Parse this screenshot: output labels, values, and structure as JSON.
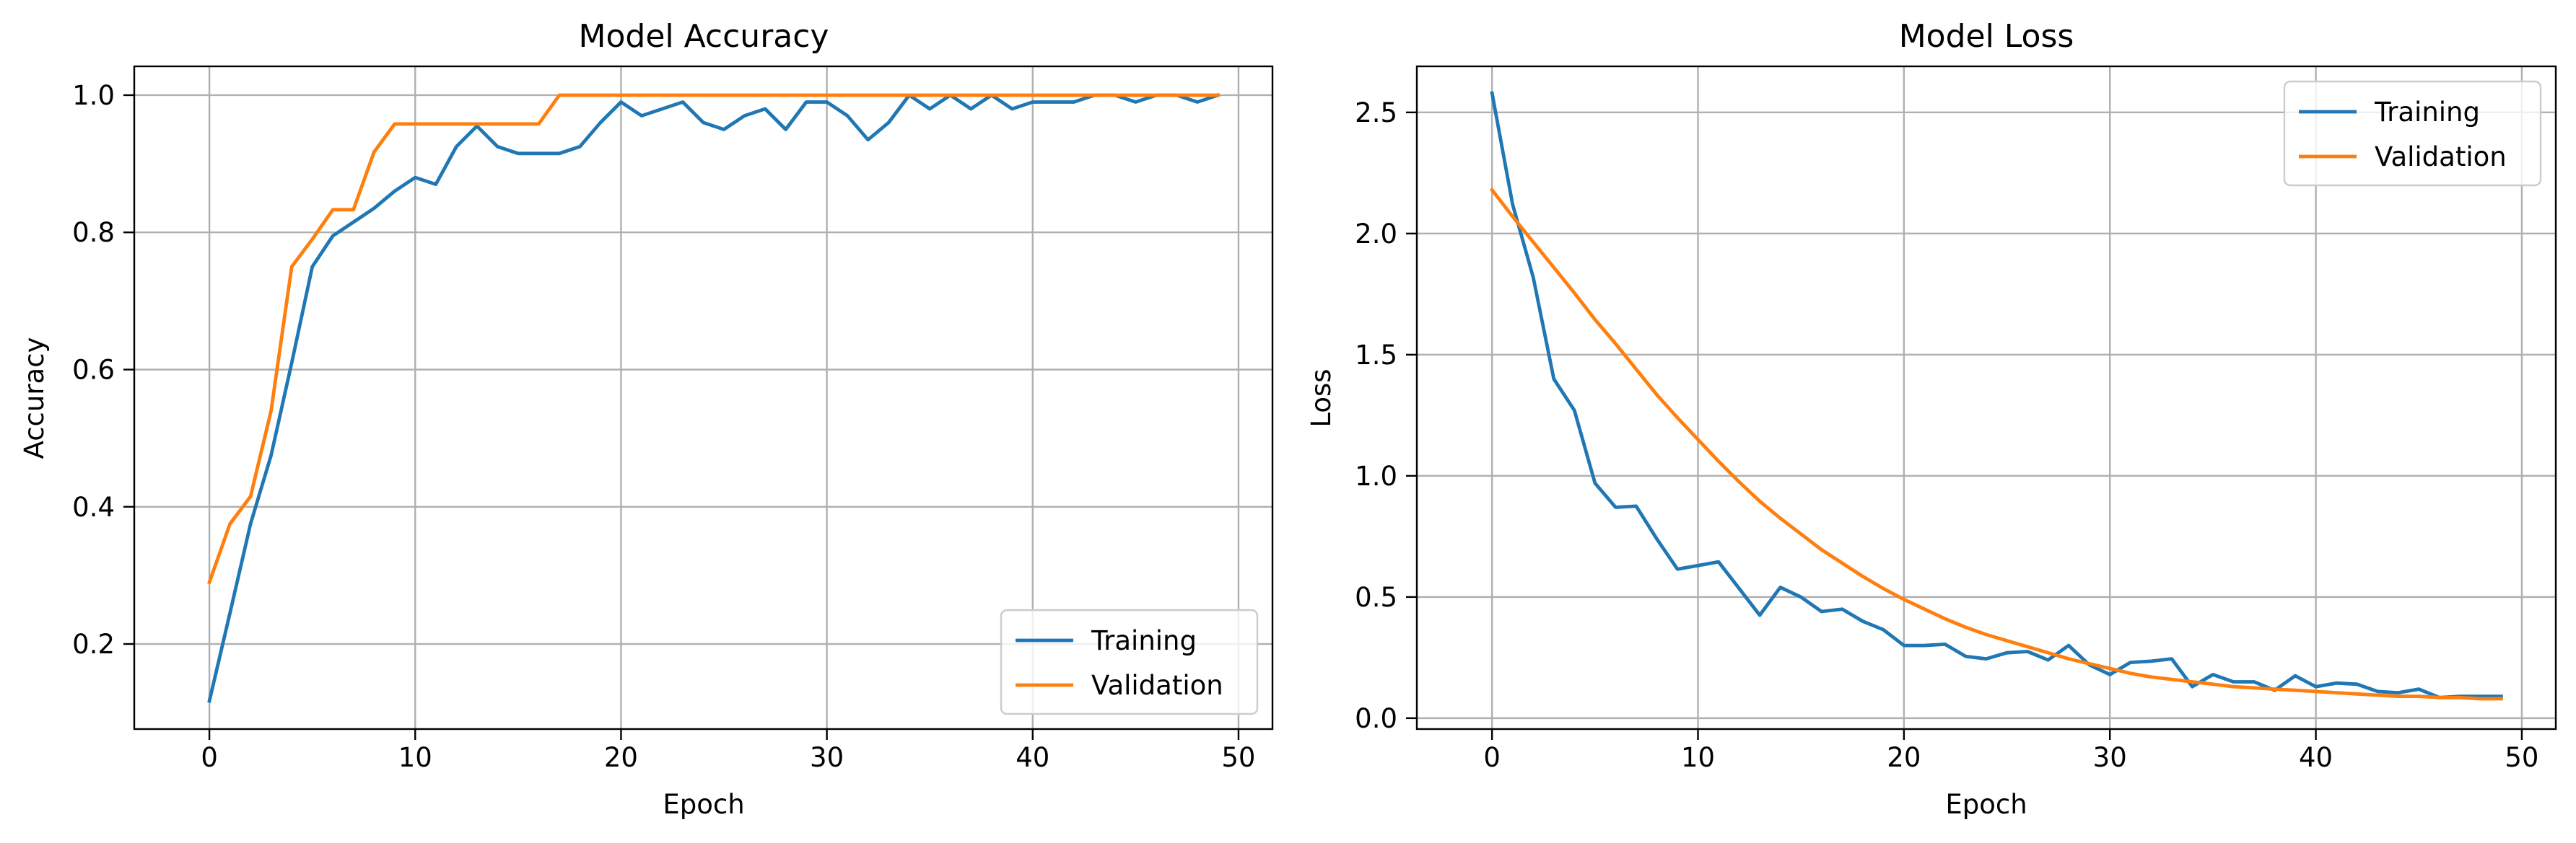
{
  "chart_data": [
    {
      "type": "line",
      "title": "Model Accuracy",
      "xlabel": "Epoch",
      "ylabel": "Accuracy",
      "xlim": [
        -3.65,
        51.65
      ],
      "ylim": [
        0.076,
        1.042
      ],
      "xticks": [
        0,
        10,
        20,
        30,
        40,
        50
      ],
      "yticks": [
        0.2,
        0.4,
        0.6,
        0.8,
        1.0
      ],
      "ytick_decimals": 1,
      "grid": true,
      "legend_position": "lower right",
      "x": [
        0,
        1,
        2,
        3,
        4,
        5,
        6,
        7,
        8,
        9,
        10,
        11,
        12,
        13,
        14,
        15,
        16,
        17,
        18,
        19,
        20,
        21,
        22,
        23,
        24,
        25,
        26,
        27,
        28,
        29,
        30,
        31,
        32,
        33,
        34,
        35,
        36,
        37,
        38,
        39,
        40,
        41,
        42,
        43,
        44,
        45,
        46,
        47,
        48,
        49
      ],
      "series": [
        {
          "name": "Training",
          "color": "#1f77b4",
          "values": [
            0.117,
            0.245,
            0.375,
            0.475,
            0.61,
            0.75,
            0.795,
            0.815,
            0.835,
            0.86,
            0.88,
            0.87,
            0.925,
            0.955,
            0.925,
            0.915,
            0.915,
            0.915,
            0.925,
            0.96,
            0.99,
            0.97,
            0.98,
            0.99,
            0.96,
            0.95,
            0.97,
            0.98,
            0.95,
            0.99,
            0.99,
            0.97,
            0.935,
            0.96,
            1.0,
            0.98,
            1.0,
            0.98,
            1.0,
            0.98,
            0.99,
            0.99,
            0.99,
            1.0,
            1.0,
            0.99,
            1.0,
            1.0,
            0.99,
            1.0
          ]
        },
        {
          "name": "Validation",
          "color": "#ff7f0e",
          "values": [
            0.29,
            0.375,
            0.415,
            0.54,
            0.75,
            0.79,
            0.833,
            0.833,
            0.917,
            0.958,
            0.958,
            0.958,
            0.958,
            0.958,
            0.958,
            0.958,
            0.958,
            1.0,
            1.0,
            1.0,
            1.0,
            1.0,
            1.0,
            1.0,
            1.0,
            1.0,
            1.0,
            1.0,
            1.0,
            1.0,
            1.0,
            1.0,
            1.0,
            1.0,
            1.0,
            1.0,
            1.0,
            1.0,
            1.0,
            1.0,
            1.0,
            1.0,
            1.0,
            1.0,
            1.0,
            1.0,
            1.0,
            1.0,
            1.0,
            1.0
          ]
        }
      ]
    },
    {
      "type": "line",
      "title": "Model Loss",
      "xlabel": "Epoch",
      "ylabel": "Loss",
      "xlim": [
        -3.65,
        51.65
      ],
      "ylim": [
        -0.045,
        2.69
      ],
      "xticks": [
        0,
        10,
        20,
        30,
        40,
        50
      ],
      "yticks": [
        0.0,
        0.5,
        1.0,
        1.5,
        2.0,
        2.5
      ],
      "ytick_decimals": 1,
      "grid": true,
      "legend_position": "upper right",
      "x": [
        0,
        1,
        2,
        3,
        4,
        5,
        6,
        7,
        8,
        9,
        10,
        11,
        12,
        13,
        14,
        15,
        16,
        17,
        18,
        19,
        20,
        21,
        22,
        23,
        24,
        25,
        26,
        27,
        28,
        29,
        30,
        31,
        32,
        33,
        34,
        35,
        36,
        37,
        38,
        39,
        40,
        41,
        42,
        43,
        44,
        45,
        46,
        47,
        48,
        49
      ],
      "series": [
        {
          "name": "Training",
          "color": "#1f77b4",
          "values": [
            2.58,
            2.12,
            1.82,
            1.4,
            1.27,
            0.97,
            0.87,
            0.875,
            0.74,
            0.615,
            0.63,
            0.645,
            0.535,
            0.425,
            0.54,
            0.5,
            0.44,
            0.45,
            0.4,
            0.365,
            0.3,
            0.3,
            0.305,
            0.255,
            0.245,
            0.27,
            0.275,
            0.24,
            0.3,
            0.22,
            0.18,
            0.23,
            0.235,
            0.245,
            0.13,
            0.18,
            0.15,
            0.15,
            0.115,
            0.175,
            0.13,
            0.145,
            0.14,
            0.11,
            0.105,
            0.12,
            0.085,
            0.09,
            0.09,
            0.09
          ]
        },
        {
          "name": "Validation",
          "color": "#ff7f0e",
          "values": [
            2.18,
            2.07,
            1.965,
            1.86,
            1.755,
            1.645,
            1.545,
            1.44,
            1.335,
            1.24,
            1.15,
            1.06,
            0.975,
            0.895,
            0.825,
            0.76,
            0.695,
            0.64,
            0.585,
            0.535,
            0.49,
            0.45,
            0.41,
            0.375,
            0.345,
            0.32,
            0.295,
            0.27,
            0.245,
            0.225,
            0.205,
            0.185,
            0.17,
            0.16,
            0.15,
            0.14,
            0.13,
            0.125,
            0.12,
            0.115,
            0.11,
            0.105,
            0.1,
            0.095,
            0.09,
            0.09,
            0.085,
            0.085,
            0.08,
            0.08
          ]
        }
      ]
    }
  ]
}
